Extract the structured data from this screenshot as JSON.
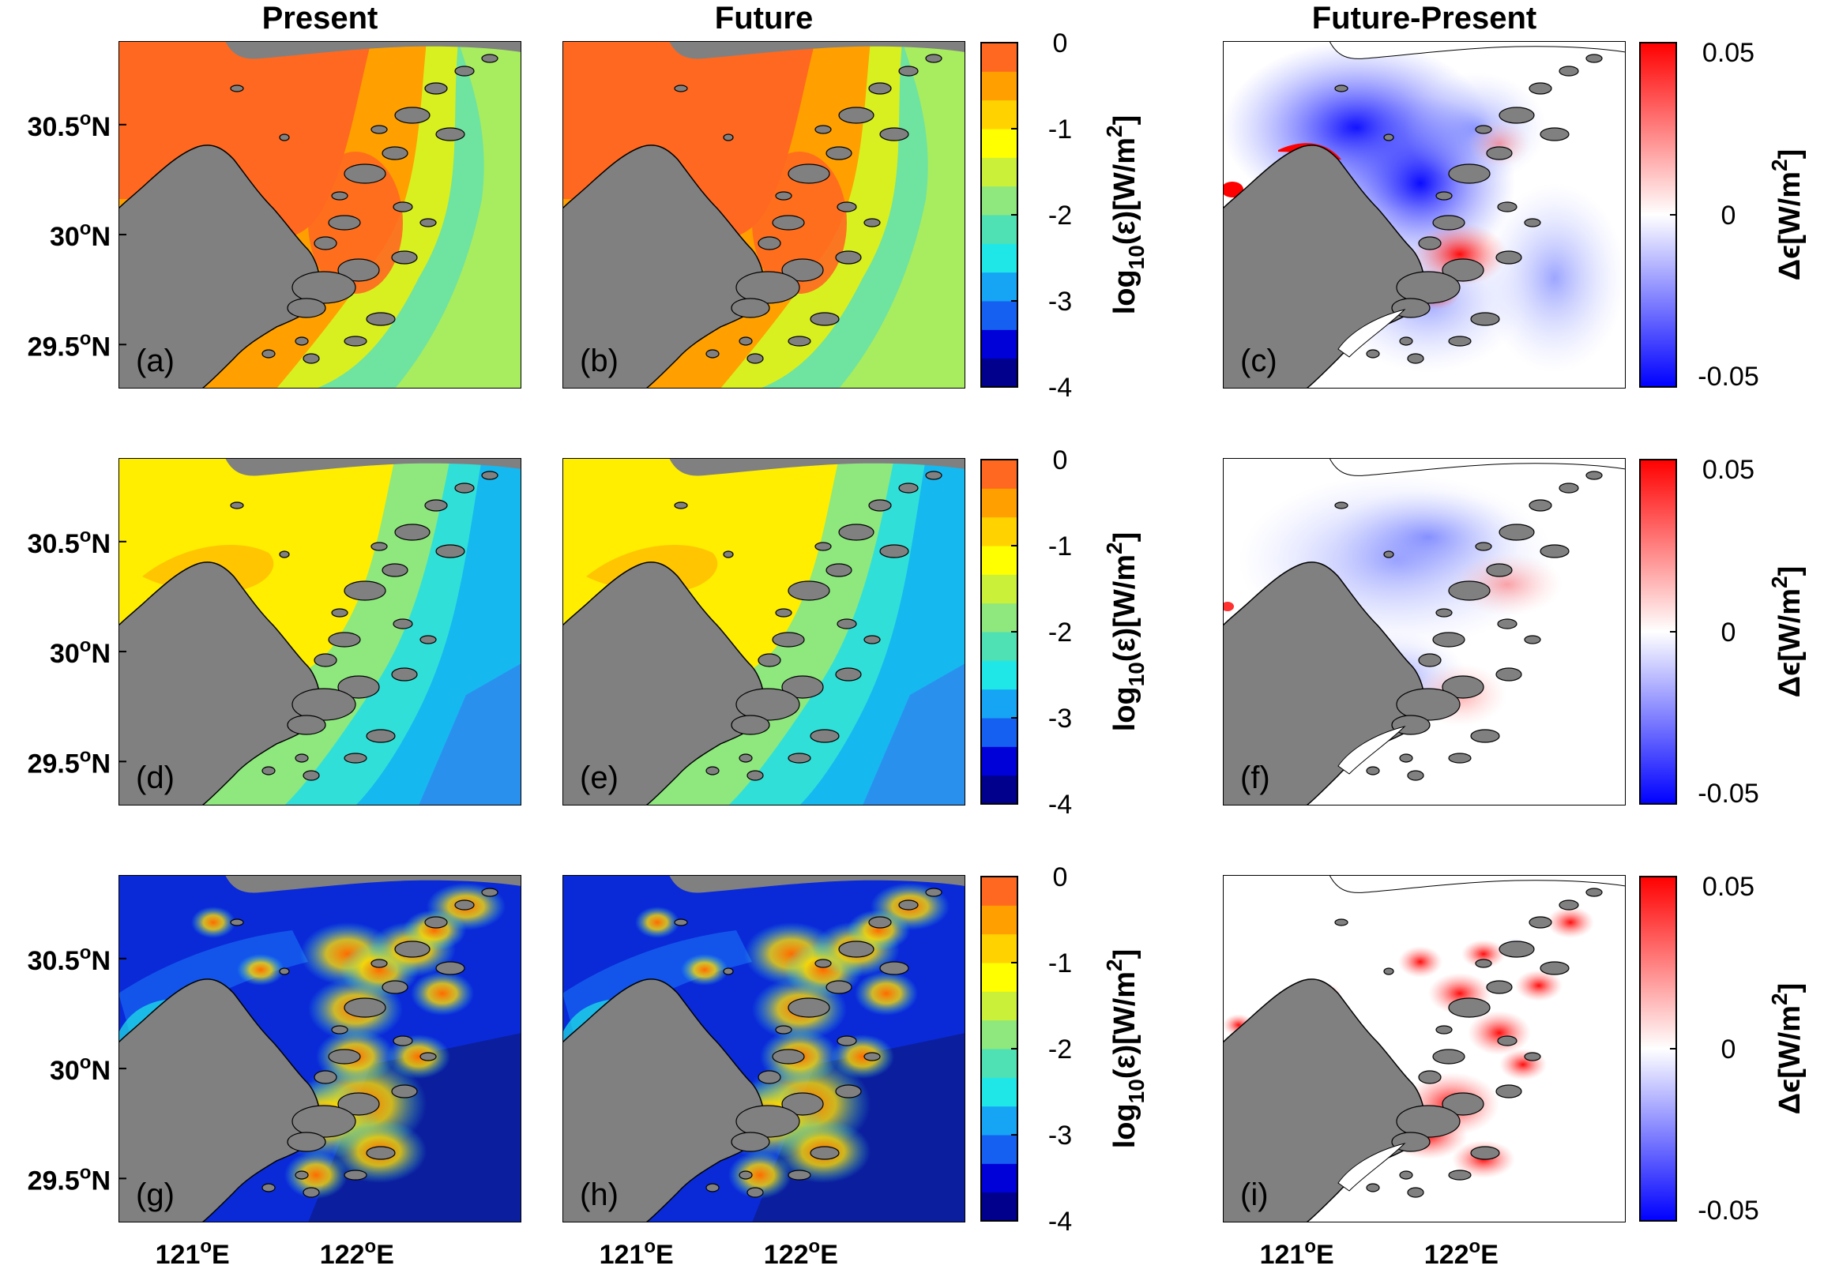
{
  "column_titles": [
    "Present",
    "Future",
    "Future-Present"
  ],
  "panel_letters": [
    [
      "(a)",
      "(b)",
      "(c)"
    ],
    [
      "(d)",
      "(e)",
      "(f)"
    ],
    [
      "(g)",
      "(h)",
      "(i)"
    ]
  ],
  "y_ticks": [
    {
      "deg": "30.5",
      "sym": "o",
      "hem": "N",
      "lat": 30.5
    },
    {
      "deg": "30",
      "sym": "o",
      "hem": "N",
      "lat": 30.0
    },
    {
      "deg": "29.5",
      "sym": "o",
      "hem": "N",
      "lat": 29.5
    }
  ],
  "x_ticks": [
    {
      "deg": "121",
      "sym": "o",
      "hem": "E",
      "lon": 121
    },
    {
      "deg": "122",
      "sym": "o",
      "hem": "E",
      "lon": 122
    }
  ],
  "map_extent": {
    "lon_min": 120.55,
    "lon_max": 123.0,
    "lat_min": 29.3,
    "lat_max": 30.88
  },
  "colorbar_log": {
    "ticks": [
      "0",
      "-1",
      "-2",
      "-3",
      "-4"
    ],
    "tick_values": [
      0,
      -1,
      -2,
      -3,
      -4
    ],
    "range": [
      -4,
      0
    ],
    "label_pre": "log",
    "label_sub": "10",
    "label_mid": "(ε)[W/m",
    "label_sup": "2",
    "label_post": "]",
    "colors": [
      "#00008c",
      "#0000d8",
      "#1560f0",
      "#16a4f5",
      "#20e7e7",
      "#4fe0b4",
      "#8ee87e",
      "#cbf03a",
      "#ffff00",
      "#ffd200",
      "#ffa000",
      "#ff6820"
    ]
  },
  "colorbar_diff": {
    "ticks": [
      "0.05",
      "0",
      "-0.05"
    ],
    "tick_values": [
      0.05,
      0,
      -0.05
    ],
    "range": [
      -0.05,
      0.05
    ],
    "label_pre": "Δϵ[W/m",
    "label_sup": "2",
    "label_post": "]"
  },
  "colors": {
    "land": "#808080",
    "present_row_a": "#ff6820",
    "present_row_d": "#ffee00",
    "present_row_g": "#0a2ad8",
    "offshore_a": "#ffff33",
    "offshore_d": "#3ed7c4",
    "offshore_g": "#0b1f9e",
    "diff_negative": "#0000ff",
    "diff_positive": "#ff0000"
  }
}
